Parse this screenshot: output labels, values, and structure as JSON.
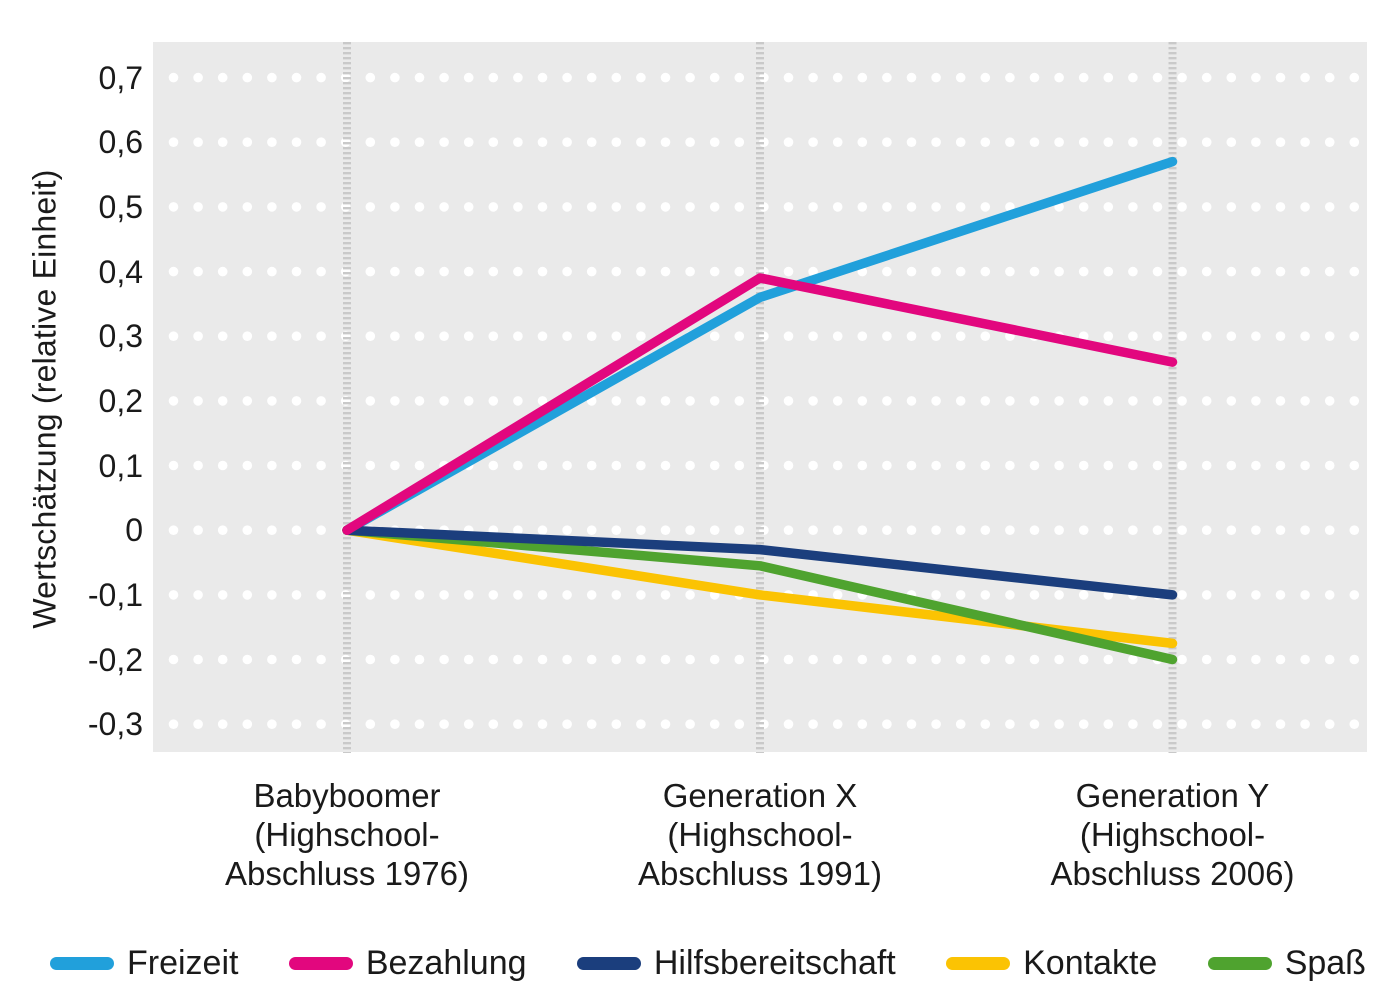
{
  "chart_data": {
    "type": "line",
    "title": "",
    "xlabel": "",
    "ylabel": "Wertschätzung (relative Einheit)",
    "plot_background": "#EAEAEA",
    "grid_dot_color": "#FFFFFF",
    "divider_color": "#C9C9C9",
    "text_color": "#1A1A1A",
    "grid": "white dot rows at each 0.1 step, dashed vertical divider at each category",
    "legend_position": "bottom",
    "ylim": [
      -0.343,
      0.755
    ],
    "yticks": [
      {
        "value": 0.7,
        "label": "0,7"
      },
      {
        "value": 0.6,
        "label": "0,6"
      },
      {
        "value": 0.5,
        "label": "0,5"
      },
      {
        "value": 0.4,
        "label": "0,4"
      },
      {
        "value": 0.3,
        "label": "0,3"
      },
      {
        "value": 0.2,
        "label": "0,2"
      },
      {
        "value": 0.1,
        "label": "0,1"
      },
      {
        "value": 0.0,
        "label": "0"
      },
      {
        "value": -0.1,
        "label": "-0,1"
      },
      {
        "value": -0.2,
        "label": "-0,2"
      },
      {
        "value": -0.3,
        "label": "-0,3"
      }
    ],
    "categories": [
      {
        "lines": [
          "Babyboomer",
          "(Highschool-",
          "Abschluss 1976)"
        ]
      },
      {
        "lines": [
          "Generation X",
          "(Highschool-",
          "Abschluss 1991)"
        ]
      },
      {
        "lines": [
          "Generation Y",
          "(Highschool-",
          "Abschluss 2006)"
        ]
      }
    ],
    "series": [
      {
        "name": "Freizeit",
        "color": "#21A0DB",
        "values": [
          0,
          0.36,
          0.57
        ]
      },
      {
        "name": "Bezahlung",
        "color": "#E2077E",
        "values": [
          0,
          0.39,
          0.26
        ]
      },
      {
        "name": "Hilfsbereitschaft",
        "color": "#1B3E7D",
        "values": [
          0,
          -0.03,
          -0.1
        ]
      },
      {
        "name": "Kontakte",
        "color": "#FBC303",
        "values": [
          0,
          -0.1,
          -0.175
        ]
      },
      {
        "name": "Spaß",
        "color": "#4FA32F",
        "values": [
          0,
          -0.055,
          -0.2
        ]
      }
    ],
    "draw_order": [
      "Freizeit",
      "Kontakte",
      "Spaß",
      "Hilfsbereitschaft",
      "Bezahlung"
    ]
  }
}
